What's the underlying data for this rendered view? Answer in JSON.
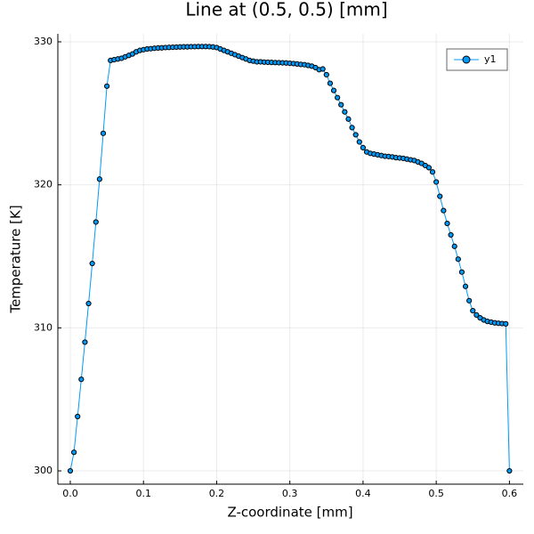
{
  "chart_data": {
    "type": "line",
    "title": "Line at (0.5, 0.5) [mm]",
    "x_label": "Z-coordinate [mm]",
    "y_label": "Temperature [K]",
    "x": [
      0,
      0.005,
      0.01,
      0.015,
      0.02,
      0.025,
      0.03,
      0.035,
      0.04,
      0.045,
      0.05,
      0.055,
      0.06,
      0.065,
      0.07,
      0.075,
      0.08,
      0.085,
      0.09,
      0.095,
      0.1,
      0.105,
      0.11,
      0.115,
      0.12,
      0.125,
      0.13,
      0.135,
      0.14,
      0.145,
      0.15,
      0.155,
      0.16,
      0.165,
      0.17,
      0.175,
      0.18,
      0.185,
      0.19,
      0.195,
      0.2,
      0.205,
      0.21,
      0.215,
      0.22,
      0.225,
      0.23,
      0.235,
      0.24,
      0.245,
      0.25,
      0.255,
      0.26,
      0.265,
      0.27,
      0.275,
      0.28,
      0.285,
      0.29,
      0.295,
      0.3,
      0.305,
      0.31,
      0.315,
      0.32,
      0.325,
      0.33,
      0.335,
      0.34,
      0.345,
      0.35,
      0.355,
      0.36,
      0.365,
      0.37,
      0.375,
      0.38,
      0.385,
      0.39,
      0.395,
      0.4,
      0.405,
      0.41,
      0.415,
      0.42,
      0.425,
      0.43,
      0.435,
      0.44,
      0.445,
      0.45,
      0.455,
      0.46,
      0.465,
      0.47,
      0.475,
      0.48,
      0.485,
      0.49,
      0.495,
      0.5,
      0.505,
      0.51,
      0.515,
      0.52,
      0.525,
      0.53,
      0.535,
      0.54,
      0.545,
      0.55,
      0.555,
      0.56,
      0.565,
      0.57,
      0.575,
      0.58,
      0.585,
      0.59,
      0.595,
      0.6
    ],
    "series": [
      {
        "name": "y1",
        "color": "#009af9",
        "values": [
          300,
          301.3,
          303.8,
          306.4,
          309.0,
          311.7,
          314.5,
          317.4,
          320.4,
          323.6,
          326.9,
          328.7,
          328.75,
          328.8,
          328.85,
          328.95,
          329.05,
          329.15,
          329.3,
          329.4,
          329.45,
          329.5,
          329.52,
          329.55,
          329.57,
          329.58,
          329.6,
          329.61,
          329.62,
          329.63,
          329.64,
          329.65,
          329.65,
          329.66,
          329.66,
          329.67,
          329.67,
          329.67,
          329.66,
          329.64,
          329.6,
          329.5,
          329.4,
          329.3,
          329.2,
          329.1,
          329.0,
          328.9,
          328.8,
          328.7,
          328.65,
          328.6,
          328.6,
          328.58,
          328.57,
          328.56,
          328.55,
          328.54,
          328.53,
          328.52,
          328.5,
          328.48,
          328.45,
          328.42,
          328.4,
          328.35,
          328.3,
          328.2,
          328.05,
          328.1,
          327.7,
          327.1,
          326.6,
          326.1,
          325.6,
          325.1,
          324.6,
          324.0,
          323.5,
          323.0,
          322.6,
          322.3,
          322.2,
          322.15,
          322.1,
          322.05,
          322.0,
          321.98,
          321.95,
          321.9,
          321.88,
          321.85,
          321.8,
          321.75,
          321.7,
          321.6,
          321.5,
          321.35,
          321.2,
          320.9,
          320.2,
          319.2,
          318.2,
          317.3,
          316.5,
          315.7,
          314.8,
          313.9,
          312.9,
          311.9,
          311.2,
          310.9,
          310.7,
          310.55,
          310.45,
          310.4,
          310.35,
          310.32,
          310.3,
          310.28,
          300
        ]
      }
    ],
    "xlim": [
      -0.017,
      0.619
    ],
    "ylim": [
      299.07,
      330.56
    ],
    "xticks": [
      {
        "value": 0,
        "label": "0.0"
      },
      0.1,
      0.2,
      0.3,
      0.4,
      0.5,
      0.6
    ],
    "yticks": [
      300,
      310,
      320,
      330
    ],
    "grid": true,
    "legend": "top-right"
  }
}
